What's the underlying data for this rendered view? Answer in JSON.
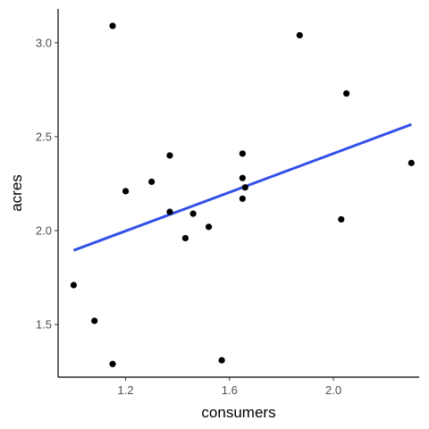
{
  "chart_data": {
    "type": "scatter",
    "xlabel": "consumers",
    "ylabel": "acres",
    "xlim": [
      0.94,
      2.33
    ],
    "ylim": [
      1.22,
      3.18
    ],
    "x_ticks": [
      1.2,
      1.6,
      2.0
    ],
    "x_tick_labels": [
      "1.2",
      "1.6",
      "2.0"
    ],
    "y_ticks": [
      1.5,
      2.0,
      2.5,
      3.0
    ],
    "y_tick_labels": [
      "1.5",
      "2.0",
      "2.5",
      "3.0"
    ],
    "grid": false,
    "legend": "none",
    "points": [
      {
        "x": 1.0,
        "y": 1.71
      },
      {
        "x": 1.08,
        "y": 1.52
      },
      {
        "x": 1.15,
        "y": 3.09
      },
      {
        "x": 1.15,
        "y": 1.29
      },
      {
        "x": 1.2,
        "y": 2.21
      },
      {
        "x": 1.3,
        "y": 2.26
      },
      {
        "x": 1.37,
        "y": 2.4
      },
      {
        "x": 1.37,
        "y": 2.1
      },
      {
        "x": 1.43,
        "y": 1.96
      },
      {
        "x": 1.46,
        "y": 2.09
      },
      {
        "x": 1.52,
        "y": 2.02
      },
      {
        "x": 1.57,
        "y": 1.31
      },
      {
        "x": 1.65,
        "y": 2.41
      },
      {
        "x": 1.65,
        "y": 2.28
      },
      {
        "x": 1.65,
        "y": 2.17
      },
      {
        "x": 1.66,
        "y": 2.23
      },
      {
        "x": 1.87,
        "y": 3.04
      },
      {
        "x": 2.03,
        "y": 2.06
      },
      {
        "x": 2.05,
        "y": 2.73
      },
      {
        "x": 2.3,
        "y": 2.36
      }
    ],
    "trend_line": {
      "x": [
        1.0,
        2.3
      ],
      "y": [
        1.895,
        2.565
      ]
    },
    "colors": {
      "points": "#000000",
      "trend_line": "#3050e8",
      "axis": "#000000",
      "tick_label": "#4d4d4d"
    }
  }
}
